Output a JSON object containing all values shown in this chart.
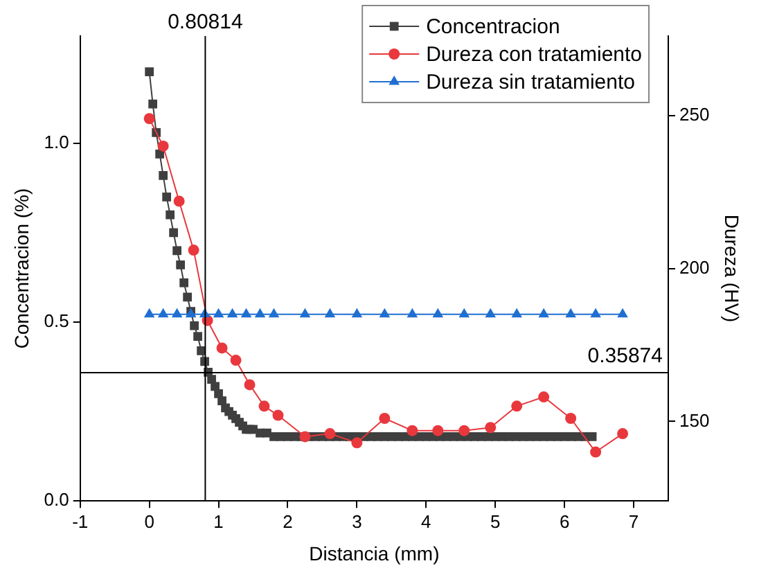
{
  "chart_data": {
    "type": "line",
    "xlabel": "Distancia (mm)",
    "ylabel": "Concentracion (%)",
    "y2label": "Dureza (HV)",
    "xlim": [
      -1,
      7.5
    ],
    "xticks": [
      -1,
      0,
      1,
      2,
      3,
      4,
      5,
      6,
      7
    ],
    "ylim": [
      0,
      1.3
    ],
    "yticks": [
      {
        "value": 0,
        "label": "0.0"
      },
      {
        "value": 0.5,
        "label": "0.5"
      },
      {
        "value": 1,
        "label": "1.0"
      }
    ],
    "y2lim": [
      124,
      276
    ],
    "y2ticks": [
      150,
      200,
      250
    ],
    "grid": false,
    "legend": "top right",
    "line_style": "solid",
    "ref_lines": [
      {
        "axis": "x",
        "value": 0.80814,
        "label": "0.80814",
        "color": "#000000"
      },
      {
        "axis": "y",
        "value": 0.35874,
        "label": "0.35874",
        "color": "#000000"
      }
    ],
    "series": [
      {
        "name": "Concentracion",
        "color": "#3f3f3f",
        "marker": "square",
        "x": [
          0,
          0.05,
          0.1,
          0.15,
          0.2,
          0.25,
          0.3,
          0.35,
          0.4,
          0.45,
          0.5,
          0.55,
          0.6,
          0.65,
          0.7,
          0.75,
          0.8,
          0.85,
          0.9,
          0.95,
          1,
          1.05,
          1.1,
          1.15,
          1.2,
          1.25,
          1.3,
          1.35,
          1.4,
          1.45,
          1.5,
          1.6,
          1.7,
          1.8,
          1.9,
          2,
          2.1,
          2.2,
          2.3,
          2.4,
          2.5,
          2.6,
          2.7,
          2.8,
          2.9,
          3,
          3.1,
          3.2,
          3.3,
          3.4,
          3.5,
          3.6,
          3.7,
          3.8,
          3.9,
          4,
          4.1,
          4.2,
          4.3,
          4.4,
          4.5,
          4.6,
          4.7,
          4.8,
          4.9,
          5,
          5.1,
          5.2,
          5.3,
          5.4,
          5.5,
          5.6,
          5.7,
          5.8,
          5.9,
          6,
          6.1,
          6.2,
          6.3,
          6.4
        ],
        "values": [
          1.2,
          1.11,
          1.03,
          0.97,
          0.91,
          0.85,
          0.8,
          0.75,
          0.7,
          0.66,
          0.61,
          0.57,
          0.53,
          0.49,
          0.46,
          0.42,
          0.39,
          0.36,
          0.34,
          0.32,
          0.3,
          0.28,
          0.26,
          0.25,
          0.24,
          0.23,
          0.22,
          0.21,
          0.2,
          0.2,
          0.2,
          0.19,
          0.19,
          0.18,
          0.18,
          0.18,
          0.18,
          0.18,
          0.18,
          0.18,
          0.18,
          0.18,
          0.18,
          0.18,
          0.18,
          0.18,
          0.18,
          0.18,
          0.18,
          0.18,
          0.18,
          0.18,
          0.18,
          0.18,
          0.18,
          0.18,
          0.18,
          0.18,
          0.18,
          0.18,
          0.18,
          0.18,
          0.18,
          0.18,
          0.18,
          0.18,
          0.18,
          0.18,
          0.18,
          0.18,
          0.18,
          0.18,
          0.18,
          0.18,
          0.18,
          0.18,
          0.18,
          0.18,
          0.18,
          0.18
        ]
      },
      {
        "name": "Dureza con tratamiento",
        "color": "#e8383d",
        "marker": "circle",
        "axis": "y2",
        "x": [
          0,
          0.2,
          0.43,
          0.64,
          0.84,
          1.05,
          1.25,
          1.45,
          1.66,
          1.86,
          2.25,
          2.61,
          3,
          3.4,
          3.8,
          4.17,
          4.55,
          4.93,
          5.31,
          5.7,
          6.09,
          6.45,
          6.84
        ],
        "values": [
          249,
          240,
          222,
          206,
          183,
          174,
          170,
          162,
          155,
          152,
          145,
          146,
          143,
          151,
          147,
          147,
          147,
          148,
          155,
          158,
          151,
          140,
          146
        ]
      },
      {
        "name": "Dureza sin tratamiento",
        "color": "#1f6fd1",
        "marker": "triangle",
        "axis": "y2",
        "x": [
          0,
          0.2,
          0.4,
          0.6,
          0.8,
          1,
          1.2,
          1.4,
          1.6,
          1.8,
          2.25,
          2.61,
          3,
          3.4,
          3.8,
          4.17,
          4.55,
          4.93,
          5.31,
          5.7,
          6.09,
          6.45,
          6.84
        ],
        "values": [
          185,
          185,
          185,
          185,
          185,
          185,
          185,
          185,
          185,
          185,
          185,
          185,
          185,
          185,
          185,
          185,
          185,
          185,
          185,
          185,
          185,
          185,
          185
        ]
      }
    ]
  }
}
